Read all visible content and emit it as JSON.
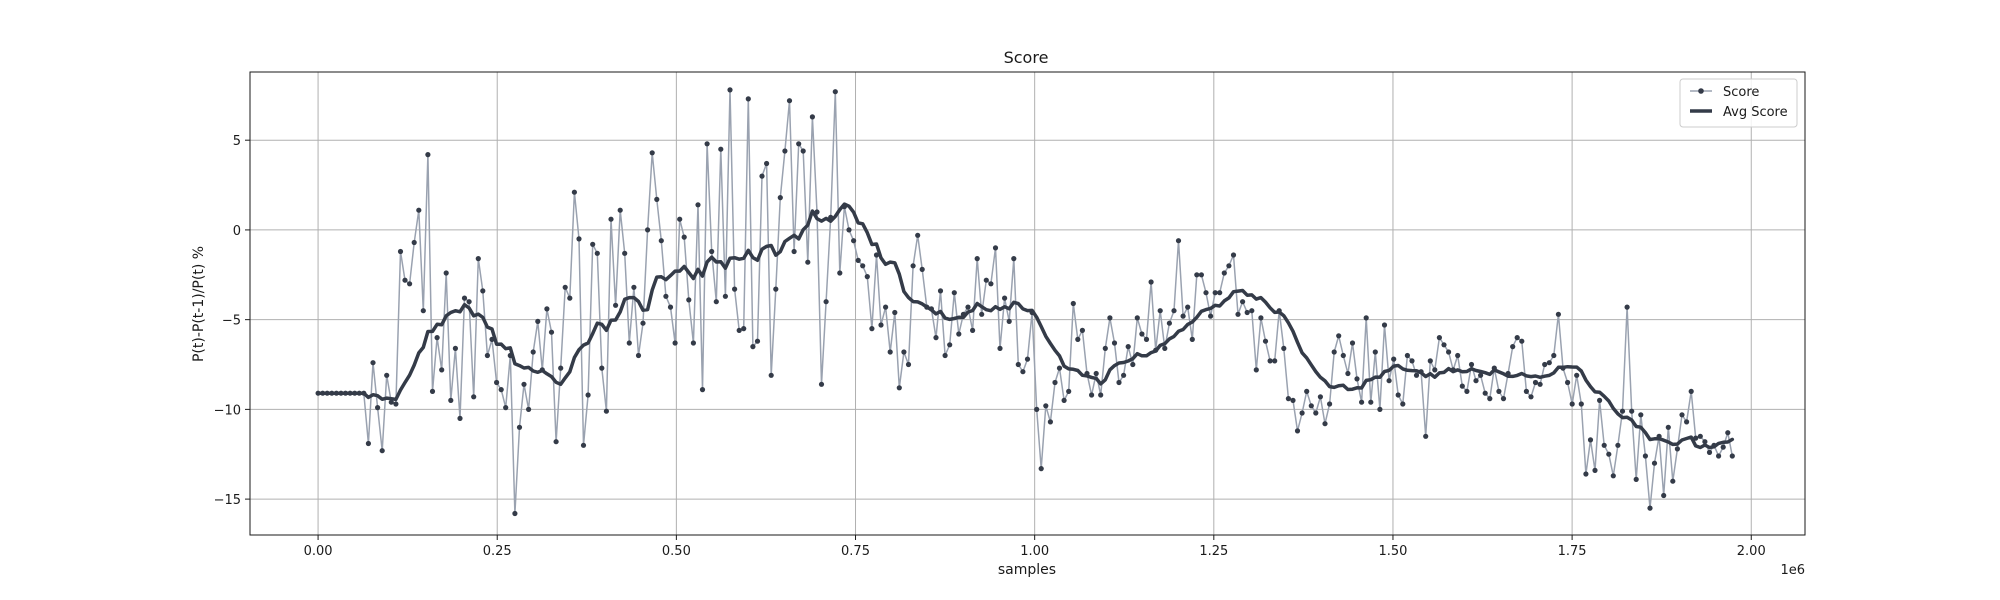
{
  "chart_data": {
    "type": "line",
    "title": "Score",
    "xlabel": "samples",
    "ylabel": "P(t)-P(t-1)/P(t) %",
    "x_offset_text": "1e6",
    "xlim": [
      -0.095,
      2.075
    ],
    "ylim": [
      -17.0,
      8.8
    ],
    "x_ticks": [
      0.0,
      0.25,
      0.5,
      0.75,
      1.0,
      1.25,
      1.5,
      1.75,
      2.0
    ],
    "x_tick_labels": [
      "0.00",
      "0.25",
      "0.50",
      "0.75",
      "1.00",
      "1.25",
      "1.50",
      "1.75",
      "2.00"
    ],
    "y_ticks": [
      -15,
      -10,
      -5,
      0,
      5
    ],
    "y_tick_labels": [
      "−15",
      "−10",
      "−5",
      "0",
      "5"
    ],
    "grid": true,
    "legend": "top-right",
    "x_max": 1.98,
    "score_values": [
      -9.1,
      -9.1,
      -9.1,
      -9.1,
      -9.1,
      -9.1,
      -9.1,
      -9.1,
      -9.1,
      -9.1,
      -9.1,
      -11.9,
      -7.4,
      -9.9,
      -12.3,
      -8.1,
      -9.6,
      -9.7,
      -1.2,
      -2.8,
      -3.0,
      -0.7,
      1.1,
      -4.5,
      4.2,
      -9.0,
      -6.0,
      -7.8,
      -2.4,
      -9.5,
      -6.6,
      -10.5,
      -3.8,
      -4.0,
      -9.3,
      -1.6,
      -3.4,
      -7.0,
      -6.1,
      -8.5,
      -8.9,
      -9.9,
      -7.0,
      -15.8,
      -11.0,
      -8.6,
      -10.0,
      -6.8,
      -5.1,
      -7.8,
      -4.4,
      -5.7,
      -11.8,
      -7.7,
      -3.2,
      -3.8,
      2.1,
      -0.5,
      -12.0,
      -9.2,
      -0.8,
      -1.3,
      -7.7,
      -10.1,
      0.6,
      -4.2,
      1.1,
      -1.3,
      -6.3,
      -3.2,
      -7.0,
      -5.2,
      0.0,
      4.3,
      1.7,
      -0.6,
      -3.7,
      -4.3,
      -6.3,
      0.6,
      -0.4,
      -3.9,
      -6.3,
      1.4,
      -8.9,
      4.8,
      -1.2,
      -4.0,
      4.5,
      -3.7,
      7.8,
      -3.3,
      -5.6,
      -5.5,
      7.3,
      -6.5,
      -6.2,
      3.0,
      3.7,
      -8.1,
      -3.3,
      1.8,
      4.4,
      7.2,
      -1.2,
      4.8,
      4.4,
      -1.8,
      6.3,
      1.0,
      -8.6,
      -4.0,
      0.7,
      7.7,
      -2.4,
      1.3,
      0.0,
      -0.6,
      -1.7,
      -2.0,
      -2.6,
      -5.5,
      -1.4,
      -5.3,
      -4.3,
      -6.8,
      -4.6,
      -8.8,
      -6.8,
      -7.5,
      -2.0,
      -0.3,
      -2.2,
      -4.3,
      -4.4,
      -6.0,
      -3.4,
      -7.0,
      -6.4,
      -3.5,
      -5.8,
      -4.7,
      -4.3,
      -5.6,
      -1.6,
      -4.7,
      -2.8,
      -3.0,
      -1.0,
      -6.6,
      -3.8,
      -5.1,
      -1.6,
      -7.5,
      -7.9,
      -7.2,
      -4.6,
      -10.0,
      -13.3,
      -9.8,
      -10.7,
      -8.5,
      -7.7,
      -9.5,
      -9.0,
      -4.1,
      -6.1,
      -5.6,
      -8.0,
      -9.2,
      -8.0,
      -9.2,
      -6.6,
      -4.9,
      -6.3,
      -8.5,
      -8.1,
      -6.5,
      -7.5,
      -4.9,
      -5.8,
      -6.1,
      -2.9,
      -6.7,
      -4.5,
      -6.6,
      -5.2,
      -4.5,
      -0.6,
      -4.8,
      -4.3,
      -6.1,
      -2.5,
      -2.5,
      -3.5,
      -4.8,
      -3.5,
      -3.5,
      -2.4,
      -2.0,
      -1.4,
      -4.7,
      -4.0,
      -4.6,
      -4.5,
      -7.8,
      -4.9,
      -6.2,
      -7.3,
      -7.3,
      -4.5,
      -6.6,
      -9.4,
      -9.5,
      -11.2,
      -10.2,
      -9.0,
      -9.8,
      -10.2,
      -9.3,
      -10.8,
      -9.7,
      -6.8,
      -5.9,
      -7.0,
      -8.0,
      -6.3,
      -8.3,
      -9.6,
      -4.9,
      -9.6,
      -6.8,
      -10.0,
      -5.3,
      -8.4,
      -7.2,
      -9.2,
      -9.7,
      -7.0,
      -7.3,
      -8.1,
      -7.9,
      -11.5,
      -7.3,
      -7.8,
      -6.0,
      -6.4,
      -6.8,
      -7.8,
      -7.0,
      -8.7,
      -9.0,
      -7.5,
      -8.4,
      -8.1,
      -9.1,
      -9.4,
      -7.7,
      -9.0,
      -9.4,
      -8.0,
      -6.5,
      -6.0,
      -6.2,
      -9.0,
      -9.3,
      -8.5,
      -8.6,
      -7.5,
      -7.4,
      -7.0,
      -4.7,
      -7.7,
      -8.5,
      -9.7,
      -8.1,
      -9.7,
      -13.6,
      -11.7,
      -13.4,
      -9.5,
      -12.0,
      -12.5,
      -13.7,
      -12.0,
      -10.1,
      -4.3,
      -10.1,
      -13.9,
      -10.3,
      -12.6,
      -15.5,
      -13.0,
      -11.5,
      -14.8,
      -11.0,
      -14.0,
      -12.2,
      -10.3,
      -10.7,
      -9.0,
      -11.6,
      -11.5,
      -11.8,
      -12.4,
      -12.0,
      -12.6,
      -12.1,
      -11.3,
      -12.6
    ],
    "series": [
      {
        "name": "Score",
        "color": "#9aa2b0",
        "marker": "dot",
        "marker_color": "#343b48"
      },
      {
        "name": "Avg Score",
        "color": "#343b48",
        "linewidth": 3.5
      }
    ]
  }
}
